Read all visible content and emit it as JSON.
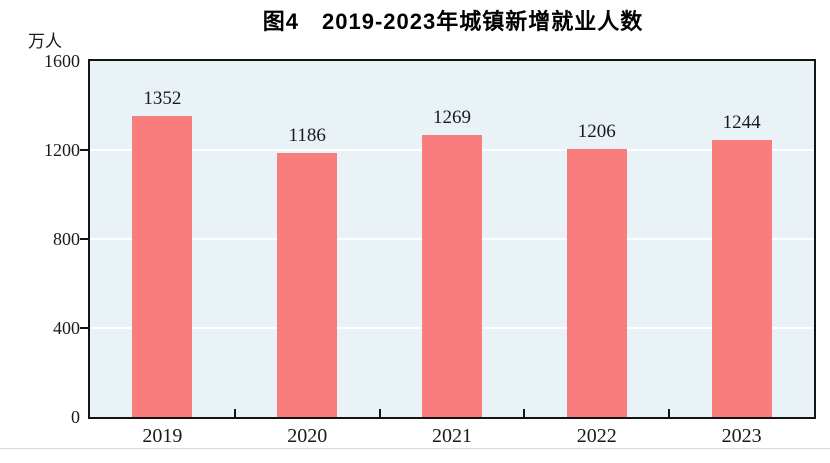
{
  "title": "图4　2019-2023年城镇新增就业人数",
  "unit_label": "万人",
  "chart_data": {
    "type": "bar",
    "title": "图4　2019-2023年城镇新增就业人数",
    "categories": [
      "2019",
      "2020",
      "2021",
      "2022",
      "2023"
    ],
    "values": [
      1352,
      1186,
      1269,
      1206,
      1244
    ],
    "data_labels": [
      "1352",
      "1186",
      "1269",
      "1206",
      "1244"
    ],
    "xlabel": "",
    "ylabel": "万人",
    "ylim": [
      0,
      1600
    ],
    "yticks": [
      0,
      400,
      800,
      1200,
      1600
    ],
    "grid": "horizontal-white-lines",
    "legend_position": "none"
  },
  "colors": {
    "bar": "#fa7d7d",
    "plot_background": "#e9f2f6",
    "axis": "#141414",
    "gridline": "#ffffff",
    "text": "#1a1a1a",
    "separator": "#d9d9d9"
  }
}
